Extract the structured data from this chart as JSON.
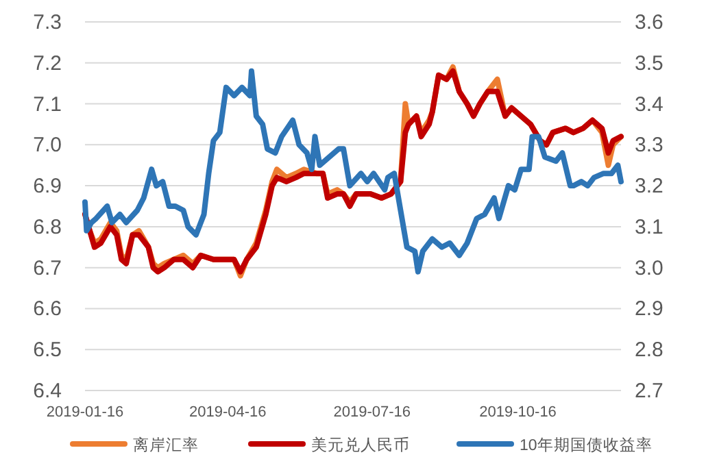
{
  "chart_data": {
    "type": "line",
    "legend": "bottom",
    "grid": "y",
    "line_style": "solid",
    "marker": "none",
    "x": [
      "2019-01-16",
      "2019-01-19",
      "2019-01-22",
      "2019-01-26",
      "2019-02-01",
      "2019-02-05",
      "2019-02-08",
      "2019-02-11",
      "2019-02-15",
      "2019-02-19",
      "2019-02-25",
      "2019-02-28",
      "2019-03-03",
      "2019-03-07",
      "2019-03-13",
      "2019-03-19",
      "2019-03-25",
      "2019-03-30",
      "2019-04-07",
      "2019-04-14",
      "2019-04-20",
      "2019-04-24",
      "2019-04-28",
      "2019-05-04",
      "2019-05-10",
      "2019-05-14",
      "2019-05-17",
      "2019-05-23",
      "2019-05-29",
      "2019-06-03",
      "2019-06-11",
      "2019-06-15",
      "2019-06-18",
      "2019-06-24",
      "2019-06-28",
      "2019-07-02",
      "2019-07-06",
      "2019-07-15",
      "2019-07-22",
      "2019-07-28",
      "2019-08-03",
      "2019-08-06",
      "2019-08-08",
      "2019-08-13",
      "2019-08-16",
      "2019-08-21",
      "2019-08-23",
      "2019-08-27",
      "2019-09-01",
      "2019-09-05",
      "2019-09-09",
      "2019-09-14",
      "2019-09-18",
      "2019-09-22",
      "2019-09-27",
      "2019-10-03",
      "2019-10-08",
      "2019-10-12",
      "2019-10-18",
      "2019-10-24",
      "2019-10-30",
      "2019-11-03",
      "2019-11-07",
      "2019-11-15",
      "2019-11-20",
      "2019-11-26",
      "2019-12-02",
      "2019-12-08",
      "2019-12-12",
      "2019-12-15",
      "2019-12-20"
    ],
    "xlim": [
      "2019-01-16",
      "2019-12-20"
    ],
    "xticks": [
      "2019-01-16",
      "2019-04-16",
      "2019-07-16",
      "2019-10-16"
    ],
    "ylim": [
      6.4,
      7.3
    ],
    "yticks": [
      6.4,
      6.5,
      6.6,
      6.7,
      6.8,
      6.9,
      {
        "value": 7,
        "label": "7.0"
      },
      7.1,
      7.2,
      7.3
    ],
    "y2lim": [
      2.7,
      3.6
    ],
    "y2ticks": [
      2.7,
      2.8,
      2.9,
      {
        "value": 3,
        "label": "3.0"
      },
      3.1,
      3.2,
      3.3,
      3.4,
      3.5,
      3.6
    ],
    "series": [
      {
        "name": "离岸汇率",
        "color": "#ed7d31",
        "values": [
          6.83,
          6.79,
          6.76,
          6.77,
          6.81,
          6.79,
          6.73,
          6.72,
          6.78,
          6.79,
          6.75,
          6.71,
          6.7,
          6.71,
          6.72,
          6.73,
          6.71,
          6.73,
          6.72,
          6.72,
          6.72,
          6.68,
          6.72,
          6.76,
          6.84,
          6.91,
          6.94,
          6.92,
          6.93,
          6.94,
          6.93,
          6.93,
          6.88,
          6.89,
          6.88,
          6.86,
          6.88,
          6.88,
          6.87,
          6.88,
          6.91,
          7.1,
          7.05,
          7.07,
          7.03,
          7.06,
          7.08,
          7.17,
          7.16,
          7.19,
          7.13,
          7.1,
          7.07,
          7.1,
          7.13,
          7.16,
          7.07,
          7.09,
          7.07,
          7.05,
          7.01,
          7.0,
          7.03,
          7.04,
          7.03,
          7.04,
          7.06,
          7.03,
          6.95,
          7.0,
          7.02
        ]
      },
      {
        "name": "美元兑人民币",
        "color": "#c00000",
        "values": [
          6.83,
          6.79,
          6.75,
          6.76,
          6.8,
          6.78,
          6.72,
          6.71,
          6.78,
          6.78,
          6.75,
          6.7,
          6.69,
          6.7,
          6.72,
          6.72,
          6.7,
          6.73,
          6.72,
          6.72,
          6.72,
          6.69,
          6.72,
          6.75,
          6.83,
          6.9,
          6.92,
          6.91,
          6.92,
          6.93,
          6.93,
          6.93,
          6.87,
          6.88,
          6.88,
          6.85,
          6.88,
          6.88,
          6.87,
          6.88,
          6.91,
          7.03,
          7.05,
          7.07,
          7.02,
          7.05,
          7.08,
          7.17,
          7.16,
          7.18,
          7.13,
          7.1,
          7.07,
          7.1,
          7.13,
          7.13,
          7.07,
          7.09,
          7.07,
          7.05,
          7.01,
          7.0,
          7.03,
          7.04,
          7.03,
          7.04,
          7.06,
          7.04,
          6.98,
          7.01,
          7.02
        ]
      },
      {
        "name": "10年期国债收益率",
        "color": "#2e75b6",
        "axis": "y2",
        "x": [
          "2019-01-16",
          "2019-01-17",
          "2019-01-20",
          "2019-01-23",
          "2019-01-30",
          "2019-02-02",
          "2019-02-07",
          "2019-02-11",
          "2019-02-18",
          "2019-02-22",
          "2019-02-27",
          "2019-03-02",
          "2019-03-06",
          "2019-03-10",
          "2019-03-14",
          "2019-03-19",
          "2019-03-22",
          "2019-03-27",
          "2019-04-01",
          "2019-04-04",
          "2019-04-07",
          "2019-04-11",
          "2019-04-15",
          "2019-04-20",
          "2019-04-25",
          "2019-04-30",
          "2019-05-01",
          "2019-05-04",
          "2019-05-08",
          "2019-05-11",
          "2019-05-16",
          "2019-05-20",
          "2019-05-27",
          "2019-05-31",
          "2019-06-05",
          "2019-06-08",
          "2019-06-10",
          "2019-06-13",
          "2019-06-19",
          "2019-06-25",
          "2019-06-28",
          "2019-07-02",
          "2019-07-09",
          "2019-07-13",
          "2019-07-17",
          "2019-07-24",
          "2019-07-26",
          "2019-07-30",
          "2019-08-03",
          "2019-08-07",
          "2019-08-12",
          "2019-08-14",
          "2019-08-17",
          "2019-08-23",
          "2019-08-29",
          "2019-09-03",
          "2019-09-09",
          "2019-09-14",
          "2019-09-20",
          "2019-09-25",
          "2019-10-01",
          "2019-10-04",
          "2019-10-10",
          "2019-10-14",
          "2019-10-18",
          "2019-10-23",
          "2019-10-25",
          "2019-10-29",
          "2019-11-02",
          "2019-11-09",
          "2019-11-13",
          "2019-11-18",
          "2019-11-20",
          "2019-11-25",
          "2019-11-29",
          "2019-12-03",
          "2019-12-09",
          "2019-12-14",
          "2019-12-18",
          "2019-12-20"
        ],
        "values": [
          3.16,
          3.09,
          3.11,
          3.12,
          3.15,
          3.11,
          3.13,
          3.11,
          3.14,
          3.17,
          3.24,
          3.2,
          3.21,
          3.15,
          3.15,
          3.14,
          3.1,
          3.08,
          3.13,
          3.23,
          3.31,
          3.33,
          3.44,
          3.42,
          3.44,
          3.42,
          3.48,
          3.37,
          3.35,
          3.29,
          3.28,
          3.32,
          3.36,
          3.3,
          3.28,
          3.24,
          3.32,
          3.25,
          3.27,
          3.29,
          3.29,
          3.2,
          3.23,
          3.21,
          3.23,
          3.19,
          3.22,
          3.23,
          3.14,
          3.05,
          3.04,
          2.99,
          3.04,
          3.07,
          3.05,
          3.06,
          3.03,
          3.06,
          3.12,
          3.13,
          3.17,
          3.12,
          3.2,
          3.19,
          3.24,
          3.24,
          3.32,
          3.32,
          3.27,
          3.26,
          3.28,
          3.2,
          3.2,
          3.21,
          3.2,
          3.22,
          3.23,
          3.23,
          3.25,
          3.21
        ]
      }
    ]
  }
}
